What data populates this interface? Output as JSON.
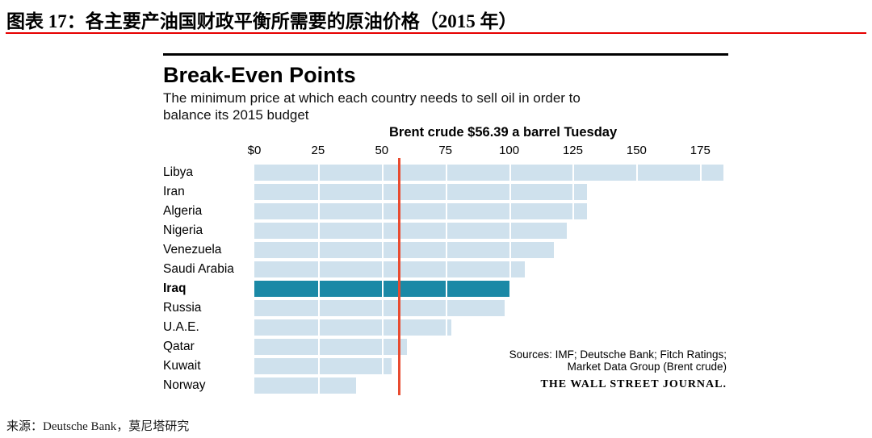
{
  "page": {
    "figure_title": "图表 17：各主要产油国财政平衡所需要的原油价格（2015 年）",
    "source_note": "来源：Deutsche Bank，莫尼塔研究"
  },
  "chart": {
    "title": "Break-Even Points",
    "subtitle_line1": "The minimum price at which each country needs to sell oil in order to",
    "subtitle_line2": "balance its 2015 budget",
    "annotation": "Brent crude $56.39 a barrel Tuesday",
    "sources_line1": "Sources: IMF; Deutsche Bank; Fitch Ratings;",
    "sources_line2": "Market Data Group (Brent crude)",
    "credit": "THE WALL STREET JOURNAL."
  },
  "chart_data": {
    "type": "bar",
    "orientation": "horizontal",
    "title": "Break-Even Points",
    "subtitle": "The minimum price at which each country needs to sell oil in order to balance its 2015 budget",
    "categories": [
      "Libya",
      "Iran",
      "Algeria",
      "Nigeria",
      "Venezuela",
      "Saudi Arabia",
      "Iraq",
      "Russia",
      "U.A.E.",
      "Qatar",
      "Kuwait",
      "Norway"
    ],
    "values": [
      184.1,
      130.7,
      130.5,
      122.7,
      117.5,
      106.0,
      100.6,
      98.2,
      77.3,
      60.0,
      54.0,
      40.0
    ],
    "unit": "USD per barrel",
    "highlighted_category": "Iraq",
    "reference_line": {
      "label": "Brent crude $56.39 a barrel Tuesday",
      "value": 56.39
    },
    "x_ticks": [
      "$0",
      "25",
      "50",
      "75",
      "100",
      "125",
      "150",
      "175"
    ],
    "x_tick_values": [
      0,
      25,
      50,
      75,
      100,
      125,
      150,
      175
    ],
    "xlim": [
      0,
      186
    ],
    "grid": "white vertical gridlines over bars",
    "legend": "none",
    "colors": {
      "bar": "#cfe1ed",
      "highlight_bar": "#1b89a6",
      "reference_line": "#e84b30"
    }
  }
}
